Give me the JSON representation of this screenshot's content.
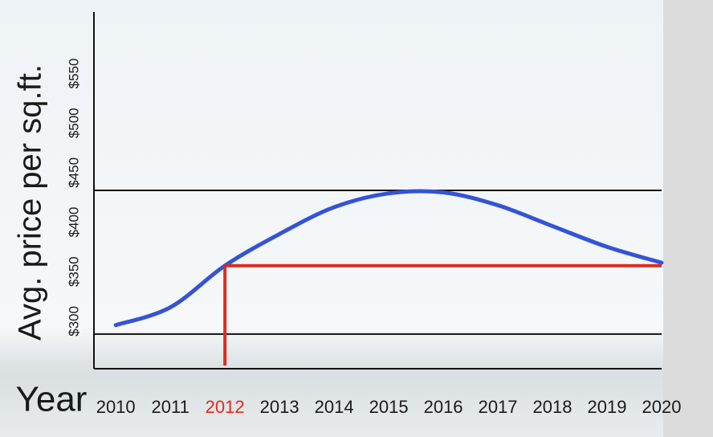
{
  "chart_data": {
    "type": "line",
    "y_label": "Avg. price per sq.ft.",
    "x_label": "Year",
    "x": [
      2010,
      2011,
      2012,
      2013,
      2014,
      2015,
      2016,
      2017,
      2018,
      2019,
      2020
    ],
    "series": [
      {
        "color": "#3553d6",
        "values": [
          296,
          314,
          356,
          388,
          415,
          429,
          430,
          417,
          396,
          375,
          359
        ]
      }
    ],
    "xlim": [
      2009.6,
      2020
    ],
    "xticks": [
      2010,
      2011,
      2012,
      2013,
      2014,
      2015,
      2016,
      2017,
      2018,
      2019,
      2020
    ],
    "ylim": [
      252,
      612
    ],
    "yticks": [
      {
        "value": 300,
        "label": "$300"
      },
      {
        "value": 350,
        "label": "$350"
      },
      {
        "value": 400,
        "label": "$400"
      },
      {
        "value": 450,
        "label": "$450"
      },
      {
        "value": 500,
        "label": "$500"
      },
      {
        "value": 550,
        "label": "$550"
      }
    ],
    "reference_lines": [
      {
        "value": 432,
        "color": "#111111"
      },
      {
        "value": 287,
        "color": "#111111"
      }
    ],
    "highlight": {
      "x": 2012,
      "value": 356,
      "color": "#e02a1e"
    }
  }
}
